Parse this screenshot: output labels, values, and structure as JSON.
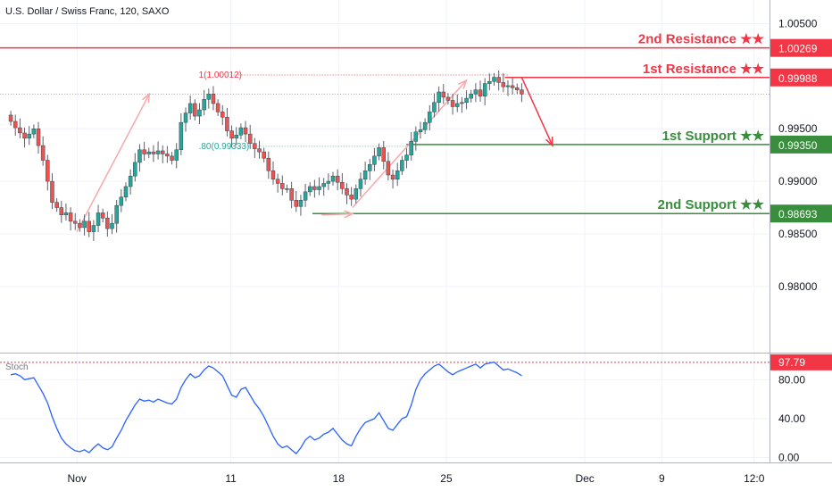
{
  "header": {
    "title": "U.S. Dollar / Swiss Franc, 120, SAXO"
  },
  "chart_data": [
    {
      "type": "candlestick",
      "title": "U.S. Dollar / Swiss Franc, 120, SAXO",
      "ylim": [
        0.9737,
        1.00725
      ],
      "y_ticks": [
        {
          "value": 1.005,
          "label": "1.00500"
        },
        {
          "value": 0.995,
          "label": "0.99500"
        },
        {
          "value": 0.99,
          "label": "0.99000"
        },
        {
          "value": 0.985,
          "label": "0.98500"
        },
        {
          "value": 0.98,
          "label": "0.98000"
        }
      ],
      "x_ticks": [
        {
          "day": 1,
          "label": "Nov"
        },
        {
          "day": 11,
          "label": "11"
        },
        {
          "day": 18,
          "label": "18"
        },
        {
          "day": 25,
          "label": "25"
        },
        {
          "day": 34,
          "label": "Dec"
        },
        {
          "day": 39,
          "label": "9"
        },
        {
          "day": 45,
          "label": "12:0"
        }
      ],
      "x_range_days": [
        -4,
        46
      ],
      "levels": [
        {
          "name": "2nd Resistance ★★",
          "value": 1.00269,
          "label": "1.00269",
          "color": "#f23645",
          "style": "solid",
          "from_day": -4
        },
        {
          "name": "1st Resistance ★★",
          "value": 0.99988,
          "label": "0.99988",
          "color": "#f23645",
          "style": "solid",
          "from_day": 28.8
        },
        {
          "name": "1st Support ★★",
          "value": 0.9935,
          "label": "0.99350",
          "color": "#388e3c",
          "style": "solid",
          "from_day": 22.4
        },
        {
          "name": "2nd Support ★★",
          "value": 0.98693,
          "label": "0.98693",
          "color": "#388e3c",
          "style": "solid",
          "from_day": 16.3
        }
      ],
      "fib_annotations": [
        {
          "text": "1(1.00012)",
          "value": 1.00012,
          "from_day": 11,
          "to_day": 29,
          "color": "#f23645"
        },
        {
          "text": ".80(0.99333)",
          "value": 0.99333,
          "from_day": 11,
          "to_day": 22.4,
          "color": "#26a69a"
        }
      ],
      "last_price": 0.9983,
      "candles_close": [
        0.9957,
        0.9951,
        0.9946,
        0.9941,
        0.9945,
        0.995,
        0.9934,
        0.992,
        0.99,
        0.988,
        0.9875,
        0.9868,
        0.987,
        0.9862,
        0.986,
        0.9856,
        0.9862,
        0.9852,
        0.9858,
        0.987,
        0.9865,
        0.9855,
        0.986,
        0.9877,
        0.9885,
        0.9895,
        0.9905,
        0.9918,
        0.993,
        0.9926,
        0.9928,
        0.9926,
        0.9929,
        0.9926,
        0.9924,
        0.992,
        0.993,
        0.9956,
        0.9965,
        0.9974,
        0.9962,
        0.9968,
        0.9978,
        0.9983,
        0.9974,
        0.9966,
        0.9961,
        0.9948,
        0.9941,
        0.9944,
        0.9951,
        0.9945,
        0.9936,
        0.9931,
        0.9928,
        0.9922,
        0.991,
        0.9902,
        0.9898,
        0.9893,
        0.9893,
        0.9882,
        0.9876,
        0.9882,
        0.989,
        0.9895,
        0.9892,
        0.9895,
        0.9898,
        0.99,
        0.9905,
        0.9899,
        0.9893,
        0.9887,
        0.9883,
        0.9893,
        0.9902,
        0.991,
        0.9916,
        0.9924,
        0.9932,
        0.9919,
        0.9906,
        0.9902,
        0.991,
        0.992,
        0.9925,
        0.9938,
        0.9947,
        0.9949,
        0.9956,
        0.9966,
        0.9975,
        0.9985,
        0.998,
        0.9977,
        0.9971,
        0.9974,
        0.9975,
        0.9979,
        0.9983,
        0.9987,
        0.9981,
        0.9993,
        0.9995,
        0.9999,
        0.9994,
        0.999,
        0.9991,
        0.9989,
        0.9987,
        0.9983
      ],
      "stoch": {
        "label": "Stoch",
        "level_line": {
          "value": 97.79,
          "label": "97.79",
          "color": "#f23645"
        },
        "ylim": [
          -5,
          105
        ],
        "y_ticks": [
          {
            "value": 80,
            "label": "80.00"
          },
          {
            "value": 40,
            "label": "40.00"
          },
          {
            "value": 0,
            "label": "0.00"
          }
        ],
        "values": [
          85,
          86,
          84,
          80,
          81,
          82,
          74,
          66,
          56,
          42,
          30,
          20,
          14,
          10,
          7,
          6,
          8,
          5,
          10,
          14,
          10,
          8,
          11,
          20,
          28,
          38,
          46,
          54,
          60,
          58,
          59,
          57,
          60,
          58,
          56,
          55,
          60,
          72,
          80,
          86,
          82,
          84,
          90,
          94,
          92,
          88,
          84,
          74,
          64,
          62,
          70,
          72,
          64,
          56,
          50,
          42,
          32,
          22,
          14,
          10,
          12,
          8,
          4,
          10,
          18,
          22,
          18,
          20,
          24,
          26,
          30,
          24,
          18,
          14,
          12,
          22,
          30,
          36,
          38,
          40,
          46,
          38,
          30,
          28,
          34,
          40,
          42,
          54,
          70,
          80,
          86,
          90,
          94,
          96,
          92,
          88,
          85,
          88,
          90,
          92,
          94,
          96,
          92,
          96,
          97,
          98,
          94,
          90,
          91,
          89,
          87,
          84
        ]
      }
    }
  ]
}
